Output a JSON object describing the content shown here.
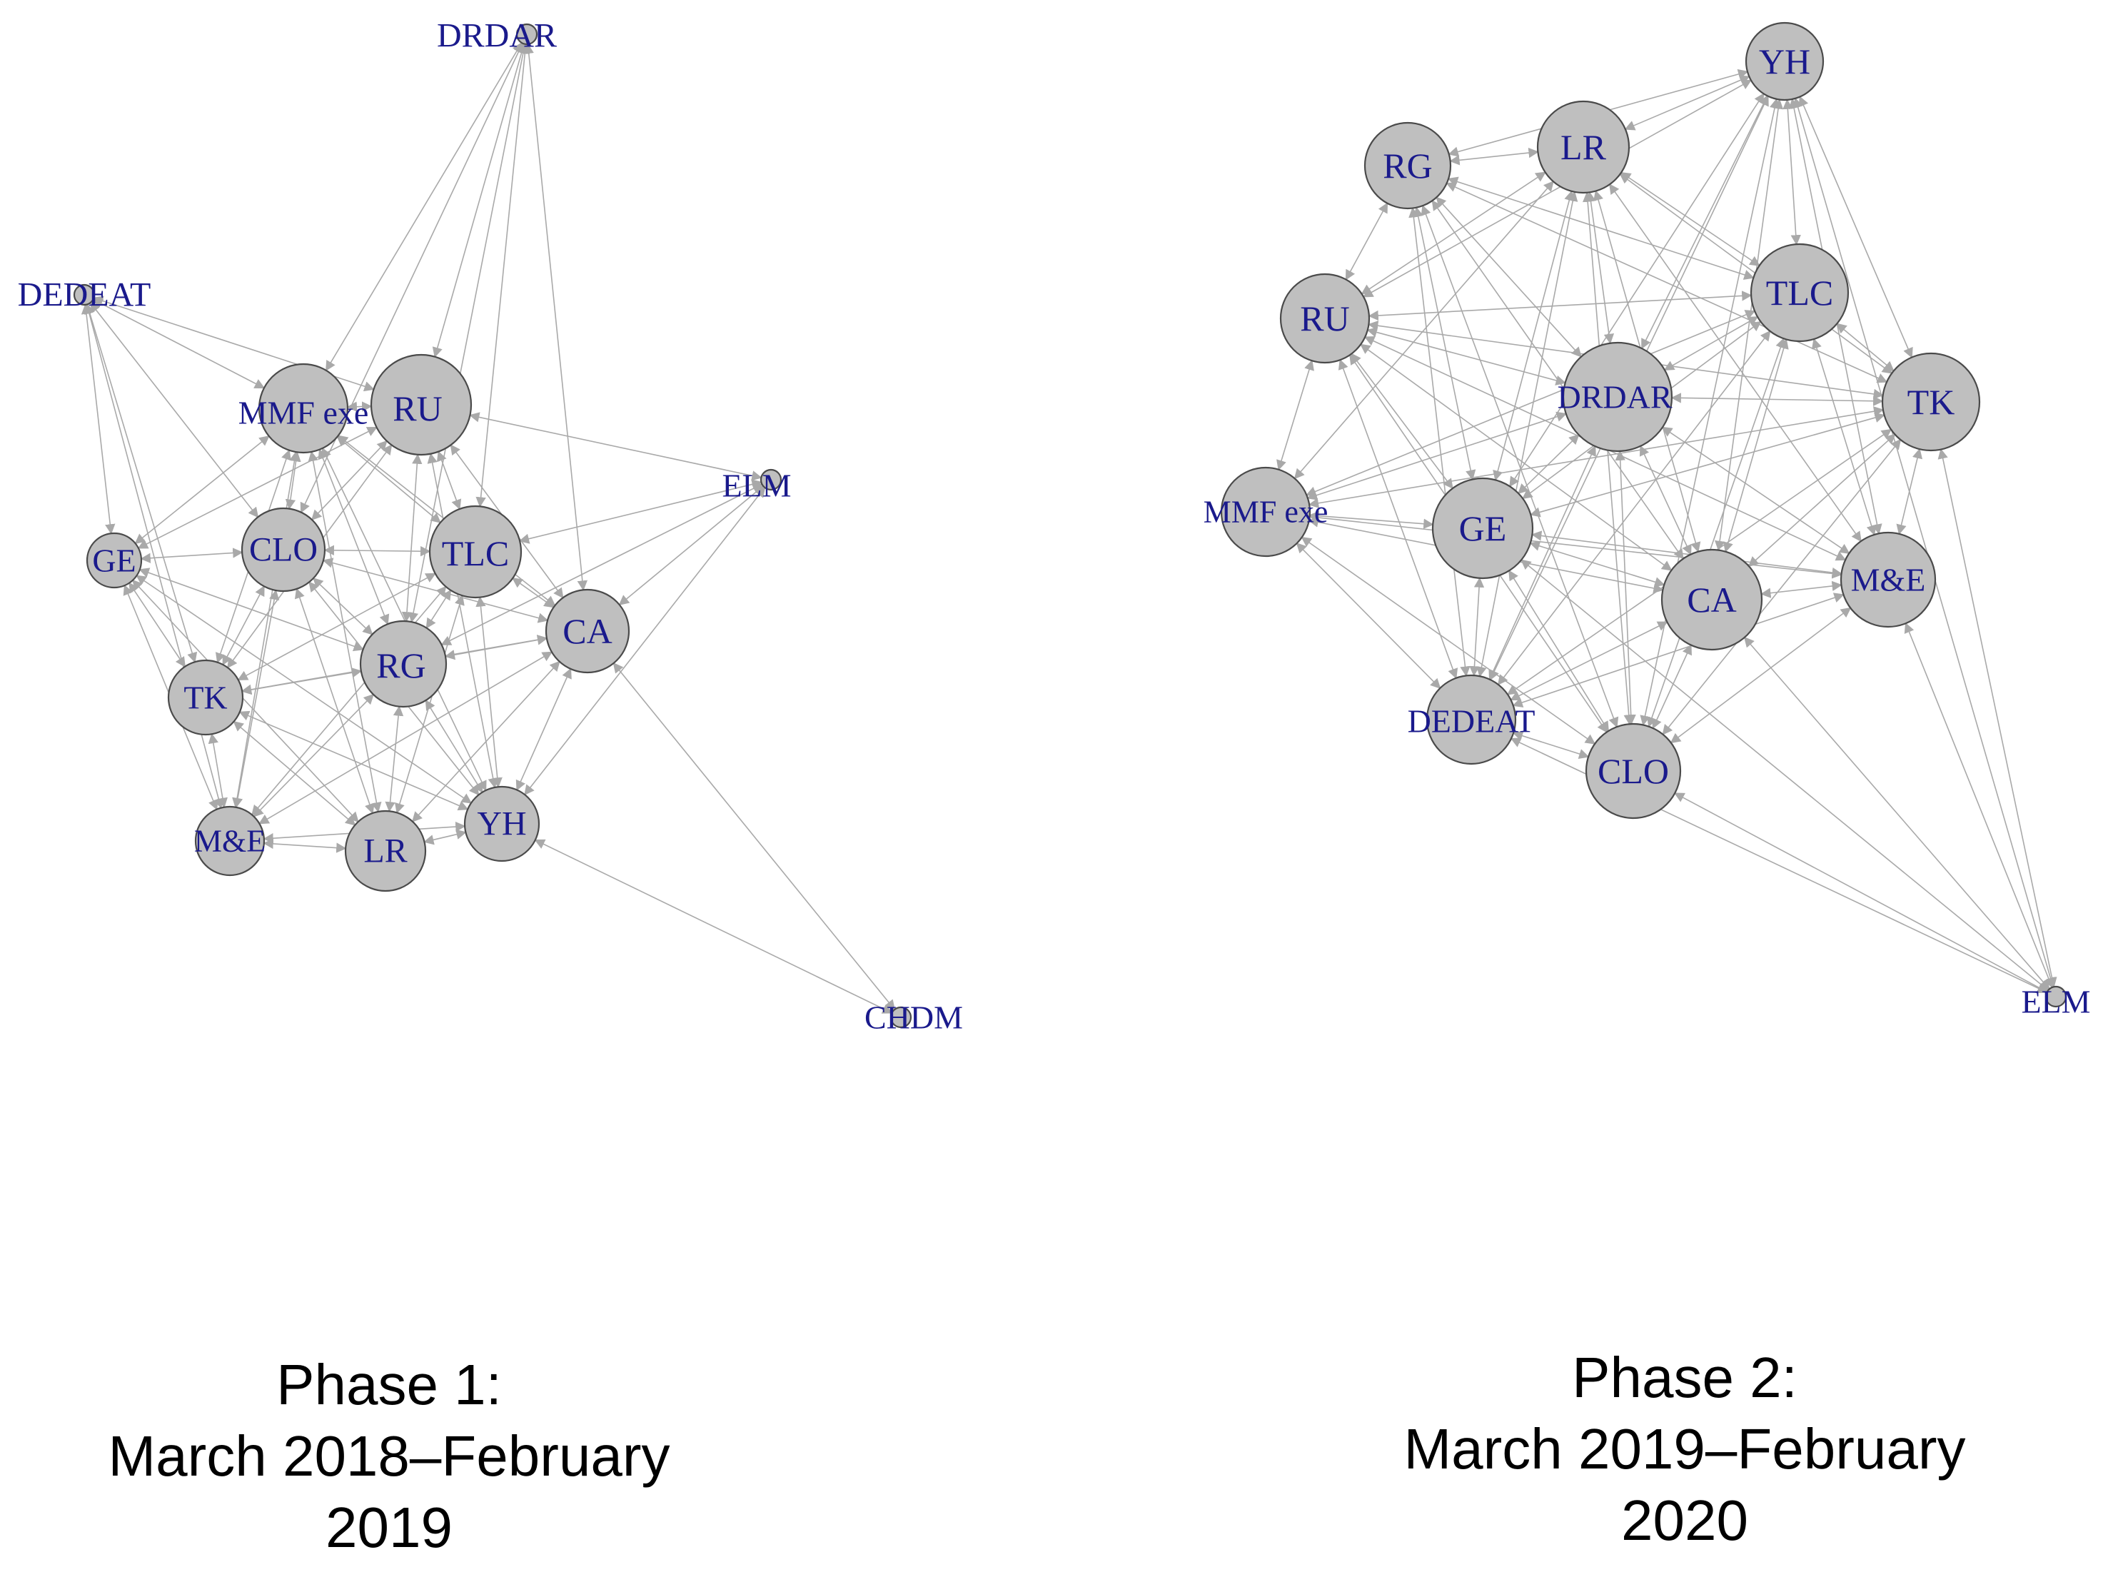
{
  "phases": [
    {
      "caption_lines": [
        "Phase 1:",
        "March 2018–February",
        "2019"
      ],
      "nodes": [
        "DRDAR",
        "DEDEAT",
        "MMF exe",
        "RU",
        "ELM",
        "GE",
        "CLO",
        "TLC",
        "CA",
        "RG",
        "TK",
        "M&E",
        "LR",
        "YH",
        "CHDM"
      ],
      "edges": [
        [
          "DRDAR",
          "MMF exe"
        ],
        [
          "DRDAR",
          "RU"
        ],
        [
          "DRDAR",
          "CLO"
        ],
        [
          "DRDAR",
          "TLC"
        ],
        [
          "DRDAR",
          "CA"
        ],
        [
          "DRDAR",
          "RG"
        ],
        [
          "DEDEAT",
          "GE"
        ],
        [
          "DEDEAT",
          "MMF exe"
        ],
        [
          "DEDEAT",
          "CLO"
        ],
        [
          "DEDEAT",
          "TK"
        ],
        [
          "DEDEAT",
          "M&E"
        ],
        [
          "DEDEAT",
          "RU"
        ],
        [
          "ELM",
          "RU"
        ],
        [
          "ELM",
          "TLC"
        ],
        [
          "ELM",
          "CA"
        ],
        [
          "ELM",
          "YH"
        ],
        [
          "ELM",
          "RG"
        ],
        [
          "CHDM",
          "CA"
        ],
        [
          "CHDM",
          "YH"
        ],
        [
          "MMF exe",
          "RU"
        ],
        [
          "MMF exe",
          "GE"
        ],
        [
          "MMF exe",
          "CLO"
        ],
        [
          "MMF exe",
          "TLC"
        ],
        [
          "MMF exe",
          "RG"
        ],
        [
          "MMF exe",
          "TK"
        ],
        [
          "MMF exe",
          "LR"
        ],
        [
          "MMF exe",
          "M&E"
        ],
        [
          "MMF exe",
          "CA"
        ],
        [
          "MMF exe",
          "YH"
        ],
        [
          "RU",
          "CLO"
        ],
        [
          "RU",
          "TLC"
        ],
        [
          "RU",
          "RG"
        ],
        [
          "RU",
          "CA"
        ],
        [
          "RU",
          "GE"
        ],
        [
          "RU",
          "YH"
        ],
        [
          "RU",
          "TK"
        ],
        [
          "GE",
          "CLO"
        ],
        [
          "GE",
          "TK"
        ],
        [
          "GE",
          "M&E"
        ],
        [
          "GE",
          "RG"
        ],
        [
          "GE",
          "LR"
        ],
        [
          "GE",
          "YH"
        ],
        [
          "CLO",
          "TLC"
        ],
        [
          "CLO",
          "TK"
        ],
        [
          "CLO",
          "RG"
        ],
        [
          "CLO",
          "M&E"
        ],
        [
          "CLO",
          "LR"
        ],
        [
          "CLO",
          "YH"
        ],
        [
          "CLO",
          "CA"
        ],
        [
          "TLC",
          "CA"
        ],
        [
          "TLC",
          "RG"
        ],
        [
          "TLC",
          "YH"
        ],
        [
          "TLC",
          "LR"
        ],
        [
          "TLC",
          "TK"
        ],
        [
          "TLC",
          "M&E"
        ],
        [
          "CA",
          "RG"
        ],
        [
          "CA",
          "YH"
        ],
        [
          "CA",
          "LR"
        ],
        [
          "CA",
          "TK"
        ],
        [
          "CA",
          "M&E"
        ],
        [
          "RG",
          "TK"
        ],
        [
          "RG",
          "LR"
        ],
        [
          "RG",
          "YH"
        ],
        [
          "RG",
          "M&E"
        ],
        [
          "TK",
          "M&E"
        ],
        [
          "TK",
          "LR"
        ],
        [
          "TK",
          "YH"
        ],
        [
          "M&E",
          "LR"
        ],
        [
          "M&E",
          "YH"
        ],
        [
          "LR",
          "YH"
        ]
      ]
    },
    {
      "caption_lines": [
        "Phase 2:",
        "March 2019–February",
        "2020"
      ],
      "nodes": [
        "YH",
        "RG",
        "LR",
        "TLC",
        "RU",
        "TK",
        "DRDAR",
        "MMF exe",
        "GE",
        "CA",
        "M&E",
        "DEDEAT",
        "CLO",
        "ELM"
      ],
      "edges": [
        [
          "RG",
          "LR"
        ],
        [
          "RG",
          "RU"
        ],
        [
          "RG",
          "YH"
        ],
        [
          "RG",
          "TLC"
        ],
        [
          "RG",
          "DRDAR"
        ],
        [
          "RG",
          "TK"
        ],
        [
          "RG",
          "GE"
        ],
        [
          "RG",
          "CA"
        ],
        [
          "RG",
          "CLO"
        ],
        [
          "RG",
          "DEDEAT"
        ],
        [
          "LR",
          "YH"
        ],
        [
          "LR",
          "RU"
        ],
        [
          "LR",
          "TLC"
        ],
        [
          "LR",
          "DRDAR"
        ],
        [
          "LR",
          "TK"
        ],
        [
          "LR",
          "MMF exe"
        ],
        [
          "LR",
          "GE"
        ],
        [
          "LR",
          "CA"
        ],
        [
          "LR",
          "M&E"
        ],
        [
          "LR",
          "CLO"
        ],
        [
          "LR",
          "DEDEAT"
        ],
        [
          "YH",
          "TLC"
        ],
        [
          "YH",
          "TK"
        ],
        [
          "YH",
          "DRDAR"
        ],
        [
          "YH",
          "GE"
        ],
        [
          "YH",
          "CA"
        ],
        [
          "YH",
          "M&E"
        ],
        [
          "YH",
          "RU"
        ],
        [
          "YH",
          "CLO"
        ],
        [
          "YH",
          "DEDEAT"
        ],
        [
          "YH",
          "ELM"
        ],
        [
          "TLC",
          "TK"
        ],
        [
          "TLC",
          "RU"
        ],
        [
          "TLC",
          "DRDAR"
        ],
        [
          "TLC",
          "GE"
        ],
        [
          "TLC",
          "CA"
        ],
        [
          "TLC",
          "M&E"
        ],
        [
          "TLC",
          "MMF exe"
        ],
        [
          "TLC",
          "CLO"
        ],
        [
          "TLC",
          "DEDEAT"
        ],
        [
          "RU",
          "DRDAR"
        ],
        [
          "RU",
          "MMF exe"
        ],
        [
          "RU",
          "GE"
        ],
        [
          "RU",
          "CA"
        ],
        [
          "RU",
          "TK"
        ],
        [
          "RU",
          "DEDEAT"
        ],
        [
          "RU",
          "CLO"
        ],
        [
          "RU",
          "M&E"
        ],
        [
          "TK",
          "DRDAR"
        ],
        [
          "TK",
          "GE"
        ],
        [
          "TK",
          "CA"
        ],
        [
          "TK",
          "M&E"
        ],
        [
          "TK",
          "MMF exe"
        ],
        [
          "TK",
          "CLO"
        ],
        [
          "TK",
          "DEDEAT"
        ],
        [
          "DRDAR",
          "MMF exe"
        ],
        [
          "DRDAR",
          "GE"
        ],
        [
          "DRDAR",
          "CA"
        ],
        [
          "DRDAR",
          "M&E"
        ],
        [
          "DRDAR",
          "CLO"
        ],
        [
          "DRDAR",
          "DEDEAT"
        ],
        [
          "MMF exe",
          "GE"
        ],
        [
          "MMF exe",
          "CA"
        ],
        [
          "MMF exe",
          "DEDEAT"
        ],
        [
          "MMF exe",
          "CLO"
        ],
        [
          "MMF exe",
          "M&E"
        ],
        [
          "GE",
          "CA"
        ],
        [
          "GE",
          "M&E"
        ],
        [
          "GE",
          "DEDEAT"
        ],
        [
          "GE",
          "CLO"
        ],
        [
          "CA",
          "M&E"
        ],
        [
          "CA",
          "CLO"
        ],
        [
          "CA",
          "DEDEAT"
        ],
        [
          "M&E",
          "CLO"
        ],
        [
          "M&E",
          "DEDEAT"
        ],
        [
          "DEDEAT",
          "CLO"
        ],
        [
          "ELM",
          "M&E"
        ],
        [
          "ELM",
          "TK"
        ],
        [
          "ELM",
          "CA"
        ],
        [
          "ELM",
          "CLO"
        ],
        [
          "ELM",
          "GE"
        ],
        [
          "ELM",
          "DEDEAT"
        ]
      ]
    }
  ]
}
